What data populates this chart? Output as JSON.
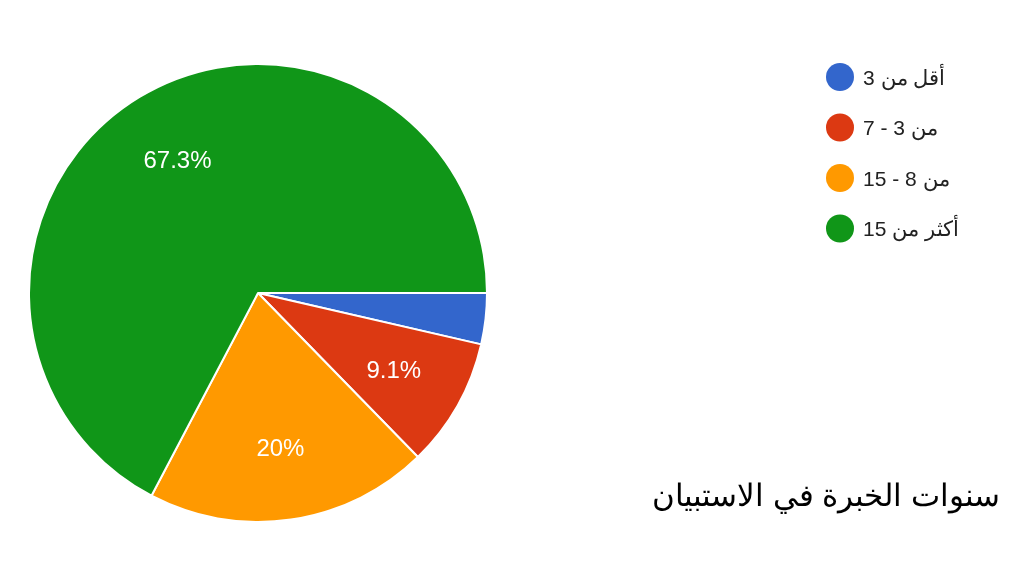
{
  "chart_data": {
    "type": "pie",
    "title": "سنوات الخبرة في الاستبيان",
    "categories": [
      "أقل من 3",
      "من 3 - 7",
      "من 8 - 15",
      "أكثر من 15"
    ],
    "values": [
      3.6,
      9.1,
      20,
      67.3
    ],
    "colors": [
      "#3366cc",
      "#dc3912",
      "#ff9900",
      "#109618"
    ],
    "value_labels": [
      null,
      "9.1%",
      "20%",
      "67.3%"
    ],
    "legend": "top right"
  }
}
